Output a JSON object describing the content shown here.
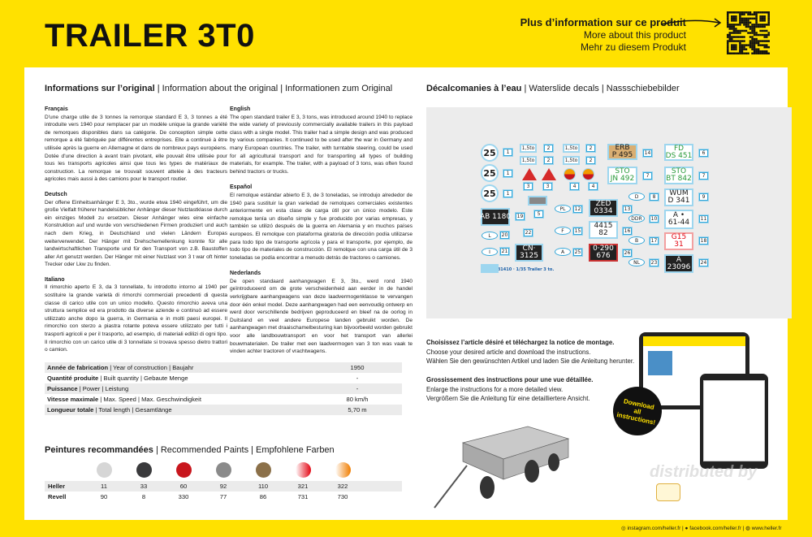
{
  "header": {
    "title": "TRAILER 3T0",
    "more_info": {
      "fr": "Plus d’information sur ce produit",
      "en": "More about this product",
      "de": "Mehr zu diesem Produkt"
    }
  },
  "original": {
    "heading_bold": "Informations sur l’original",
    "heading_rest": " | Information about the original | Informationen zum Original",
    "sections": [
      {
        "lang": "Français",
        "text": "D'une charge utile de 3 tonnes la remorque standard E 3, 3 tonnes a été introduite vers 1940 pour remplacer par un modèle unique la grande variété de remorques disponibles dans sa catégorie. De conception simple cette remorque a été fabriquée par différentes entreprises. Elle a continué à être utilisée après la guerre en Allemagne et dans de nombreux pays européens. Dotée d'une direction à avant train pivotant, elle pouvait être utilisée pour tous les transports agricoles ainsi que tous les types de matériaux de construction. La remorque se trouvait souvent attelée à des tracteurs agricoles mais aussi à des camions pour le transport routier."
      },
      {
        "lang": "Deutsch",
        "text": "Der offene Einheitsanhänger E 3, 3to., wurde etwa 1940 eingeführt, um die große Vielfalt früherer handelsüblicher Anhänger dieser Nutzlastklasse durch ein einziges Modell zu ersetzen. Dieser Anhänger wies eine einfache Konstruktion auf und wurde von verschiedenen Firmen produziert und auch nach dem Krieg, in Deutschland und vielen Ländern Europas weiterverwendet. Der Hänger mit Drehschemellenkung konnte für alle landwirtschaftlichen Transporte und für den Transport von z.B. Baustoffen aller Art genutzt werden. Der Hänger mit einer Nutzlast von 3 t war oft hinter Trecker oder Lkw zu finden."
      },
      {
        "lang": "Italiano",
        "text": "Il rimorchio aperto E 3, da 3 tonnellate, fu introdotto intorno al 1940 per sostituire la grande varietà di rimorchi commerciali precedenti di questa classe di carico utile con un unico modello. Questo rimorchio aveva una struttura semplice ed era prodotto da diverse aziende e continuò ad essere utilizzato anche dopo la guerra, in Germania e in molti paesi europei. Il rimorchio con sterzo a piastra rotante poteva essere utilizzato per tutti i trasporti agricoli e per il trasporto, ad esempio, di materiali edilizi di ogni tipo. Il rimorchio con un carico utile di 3 tonnellate si trovava spesso dietro trattori o camion."
      },
      {
        "lang": "English",
        "text": "The open standard trailer E 3, 3 tons, was introduced around 1940 to replace the wide variety of previously commercially available trailers in this payload class with a single model. This trailer had a simple design and was produced by various companies. It continued to be used after the war in Germany and many European countries. The trailer, with turntable steering, could be used for all agricultural transport and for transporting all types of building materials, for example. The trailer, with a payload of 3 tons, was often found behind tractors or trucks."
      },
      {
        "lang": "Español",
        "text": "El remolque estándar abierto E 3, de 3 toneladas, se introdujo alrededor de 1940 para sustituir la gran variedad de remolques comerciales existentes anteriormente en esta clase de carga útil por un único modelo. Este remolque tenía un diseño simple y fue producido por varias empresas, y también se utilizó después de la guerra en Alemania y en muchos países europeos. El remolque con plataforma giratoria de dirección podía utilizarse para todo tipo de transporte agrícola y para el transporte, por ejemplo, de todo tipo de materiales de construcción. El remolque con una carga útil de 3 toneladas se podía encontrar a menudo detrás de tractores o camiones."
      },
      {
        "lang": "Nederlands",
        "text": "De open standaard aanhangwagen E 3, 3to., werd rond 1940 geïntroduceerd om de grote verscheidenheid aan eerder in de handel verkrijgbare aanhangwagens van deze laadvermogenklasse te vervangen door één enkel model. Deze aanhangwagen had een eenvoudig ontwerp en werd door verschillende bedrijven geproduceerd en bleef na de oorlog in Duitsland en veel andere Europese landen gebruikt worden. De aanhangwagen met draaischamelbesturing kan bijvoorbeeld worden gebruikt voor alle landbouwtransport en voor het transport van allerlei bouwmaterialen. De trailer met een laadvermogen van 3 ton was vaak te vinden achter tractoren of vrachtwagens."
      }
    ]
  },
  "specs": [
    {
      "bold": "Année de fabrication",
      "rest": " | Year of construction | Baujahr",
      "value": "1950"
    },
    {
      "bold": "Quantité produite",
      "rest": " | Built quantity | Gebaute Menge",
      "value": "-"
    },
    {
      "bold": "Puissance",
      "rest": " | Power | Leistung",
      "value": "-"
    },
    {
      "bold": "Vitesse maximale",
      "rest": " | Max. Speed | Max. Geschwindigkeit",
      "value": "80 km/h"
    },
    {
      "bold": "Longueur totale",
      "rest": " | Total length | Gesamtlänge",
      "value": "5,70 m"
    }
  ],
  "paints": {
    "heading_bold": "Peintures recommandées",
    "heading_rest": " | Recommended Paints | Empfohlene Farben",
    "colors": [
      "#d6d6d6",
      "#3a3a3c",
      "#c8161d",
      "#8a8a8a",
      "#8b7049",
      "linear-gradient(90deg,#fff,#e30613)",
      "linear-gradient(90deg,#fff,#f07d00)"
    ],
    "heller_label": "Heller",
    "revell_label": "Revell",
    "heller": [
      "11",
      "33",
      "60",
      "92",
      "110",
      "321",
      "322"
    ],
    "revell": [
      "90",
      "8",
      "330",
      "77",
      "86",
      "731",
      "730"
    ]
  },
  "decals": {
    "heading_bold": "Décalcomanies à l’eau",
    "heading_rest": " | Waterslide decals | Nassschiebebilder",
    "items": [
      "25",
      "1",
      "25",
      "1",
      "25",
      "1",
      "1,5to",
      "2",
      "1,5to",
      "2",
      "1,5to",
      "2",
      "1,5to",
      "2",
      "3",
      "3",
      "4",
      "4",
      "5",
      "L",
      "AB 1180",
      "19",
      "L",
      "20",
      "22",
      "I",
      "21",
      "CN·\n3125",
      "81410 · 1/35 Trailer 3 to.",
      "PL",
      "12",
      "ZED\n0334",
      "13",
      "F",
      "15",
      "4415\n82",
      "16",
      "A",
      "25",
      "0·290\n676",
      "26",
      "ERB\nP 495",
      "14",
      "FD\nDS 451",
      "6",
      "STO\nJN 492",
      "7",
      "STO\nBT 842",
      "7",
      "D",
      "8",
      "WUM\nD 341",
      "9",
      "DDR",
      "10",
      "A •\n61-44",
      "11",
      "B",
      "17",
      "G15\n31",
      "18",
      "NL",
      "23",
      "A\n23096",
      "24"
    ]
  },
  "instructions": {
    "l1b": "Choisissez l’article désiré et téléchargez la notice de montage.",
    "l2": "Choose your desired article and download the instructions.",
    "l3": "Wählen Sie den gewünschten Artikel und laden Sie die Anleitung herunter.",
    "l4b": "Grossissement des instructions pour une vue détaillée.",
    "l5": "Enlarge the instructions for a more detailed view.",
    "l6": "Vergrößern Sie die Anleitung für eine detailliertere Ansicht.",
    "badge": "Download all instructions!"
  },
  "watermark": "distributed by",
  "footer": {
    "instagram": "instagram.com/heller.fr",
    "facebook": "facebook.com/heller.fr",
    "web": "www.heller.fr"
  },
  "colors": {
    "brand_yellow": "#FFE100",
    "decal_outline": "#35a7d8"
  }
}
